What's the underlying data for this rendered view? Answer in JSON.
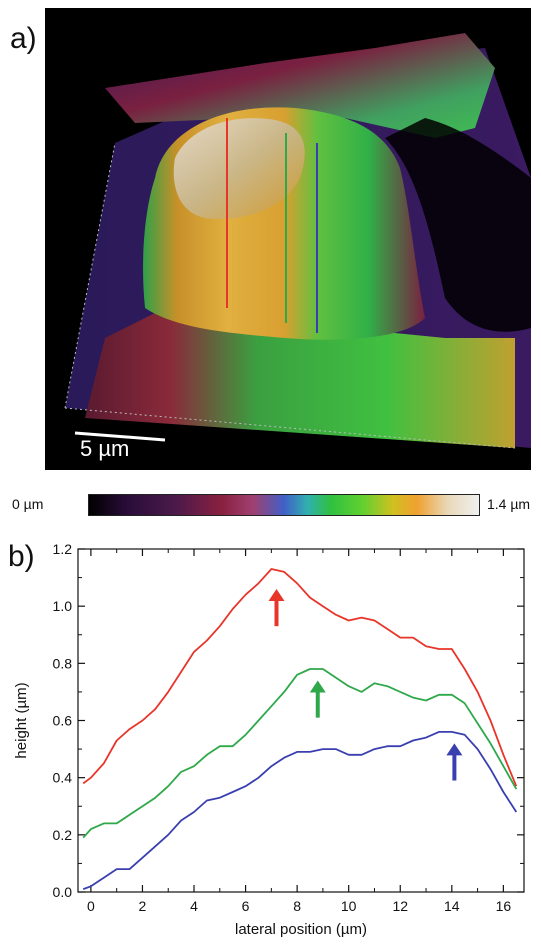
{
  "panel_a": {
    "label": "a)",
    "scale_bar_text": "5 µm",
    "colorbar_min": "0 µm",
    "colorbar_max": "1.4 µm",
    "profile_line_colors": [
      "#e8352a",
      "#2fa84a",
      "#3a3fb0"
    ]
  },
  "panel_b": {
    "label": "b)"
  },
  "chart_data": {
    "type": "line",
    "xlabel": "lateral position (µm)",
    "ylabel": "height (µm)",
    "xlim": [
      -0.5,
      16.8
    ],
    "ylim": [
      0.0,
      1.2
    ],
    "xticks": [
      0,
      2,
      4,
      6,
      8,
      10,
      12,
      14,
      16
    ],
    "xtick_labels": [
      "0",
      "2",
      "4",
      "6",
      "8",
      "10",
      "12",
      "14",
      "16"
    ],
    "yticks": [
      0.0,
      0.2,
      0.4,
      0.6,
      0.8,
      1.0,
      1.2
    ],
    "ytick_labels": [
      "0.0",
      "0.2",
      "0.4",
      "0.6",
      "0.8",
      "1.0",
      "1.2"
    ],
    "series": [
      {
        "color": "#e8352a",
        "x": [
          -0.3,
          0,
          0.5,
          1,
          1.5,
          2,
          2.5,
          3,
          3.5,
          4,
          4.5,
          5,
          5.5,
          6,
          6.5,
          7,
          7.5,
          8,
          8.5,
          9,
          9.5,
          10,
          10.5,
          11,
          11.5,
          12,
          12.5,
          13,
          13.5,
          14,
          14.5,
          15,
          15.5,
          16,
          16.5
        ],
        "y": [
          0.38,
          0.4,
          0.45,
          0.53,
          0.57,
          0.6,
          0.64,
          0.7,
          0.77,
          0.84,
          0.88,
          0.93,
          0.99,
          1.04,
          1.08,
          1.13,
          1.12,
          1.08,
          1.03,
          1.0,
          0.97,
          0.95,
          0.96,
          0.95,
          0.92,
          0.89,
          0.89,
          0.86,
          0.85,
          0.85,
          0.78,
          0.7,
          0.6,
          0.48,
          0.37
        ]
      },
      {
        "color": "#2fa84a",
        "x": [
          -0.3,
          0,
          0.5,
          1,
          1.5,
          2,
          2.5,
          3,
          3.5,
          4,
          4.5,
          5,
          5.5,
          6,
          6.5,
          7,
          7.5,
          8,
          8.5,
          9,
          9.5,
          10,
          10.5,
          11,
          11.5,
          12,
          12.5,
          13,
          13.5,
          14,
          14.5,
          15,
          15.5,
          16,
          16.5
        ],
        "y": [
          0.19,
          0.22,
          0.24,
          0.24,
          0.27,
          0.3,
          0.33,
          0.37,
          0.42,
          0.44,
          0.48,
          0.51,
          0.51,
          0.55,
          0.6,
          0.65,
          0.7,
          0.76,
          0.78,
          0.78,
          0.75,
          0.72,
          0.7,
          0.73,
          0.72,
          0.7,
          0.68,
          0.67,
          0.69,
          0.69,
          0.66,
          0.59,
          0.52,
          0.44,
          0.36
        ]
      },
      {
        "color": "#3a3fb0",
        "x": [
          -0.3,
          0,
          0.5,
          1,
          1.5,
          2,
          2.5,
          3,
          3.5,
          4,
          4.5,
          5,
          5.5,
          6,
          6.5,
          7,
          7.5,
          8,
          8.5,
          9,
          9.5,
          10,
          10.5,
          11,
          11.5,
          12,
          12.5,
          13,
          13.5,
          14,
          14.5,
          15,
          15.5,
          16,
          16.5
        ],
        "y": [
          0.01,
          0.02,
          0.05,
          0.08,
          0.08,
          0.12,
          0.16,
          0.2,
          0.25,
          0.28,
          0.32,
          0.33,
          0.35,
          0.37,
          0.4,
          0.44,
          0.47,
          0.49,
          0.49,
          0.5,
          0.5,
          0.48,
          0.48,
          0.5,
          0.51,
          0.51,
          0.53,
          0.54,
          0.56,
          0.56,
          0.55,
          0.5,
          0.43,
          0.35,
          0.28
        ]
      }
    ],
    "annotations": [
      {
        "type": "arrow",
        "color": "#e8352a",
        "x": 7.2,
        "y_tip": 1.06,
        "y_tail": 0.93
      },
      {
        "type": "arrow",
        "color": "#2fa84a",
        "x": 8.8,
        "y_tip": 0.74,
        "y_tail": 0.61
      },
      {
        "type": "arrow",
        "color": "#3a3fb0",
        "x": 14.1,
        "y_tip": 0.52,
        "y_tail": 0.39
      }
    ]
  }
}
